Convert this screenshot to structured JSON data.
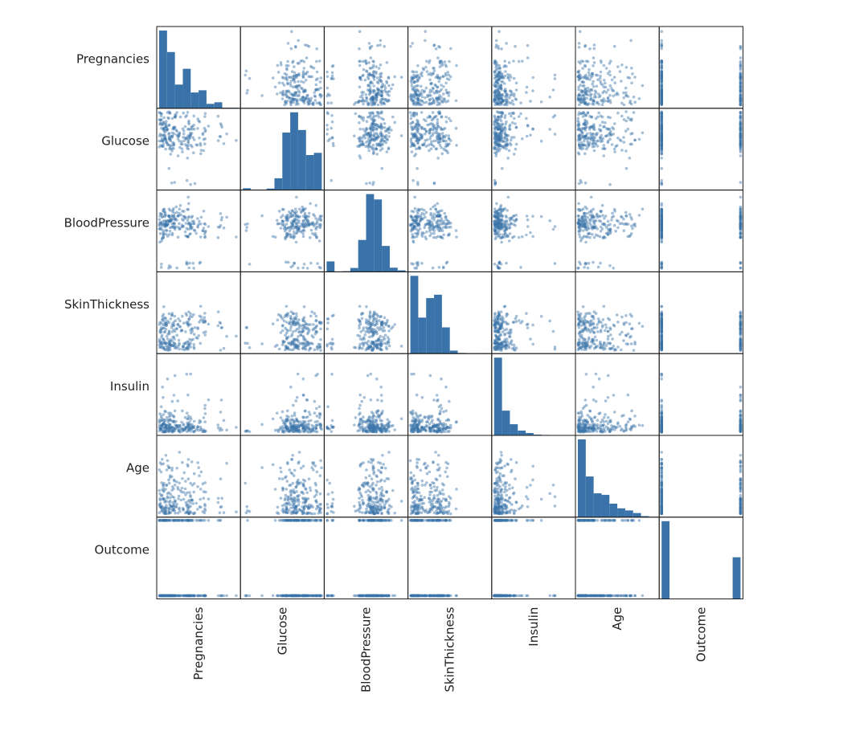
{
  "chart_data": {
    "type": "scatter_matrix",
    "variables": [
      "Pregnancies",
      "Glucose",
      "BloodPressure",
      "SkinThickness",
      "Insulin",
      "Age",
      "Outcome"
    ],
    "ranges": {
      "Pregnancies": [
        0,
        17
      ],
      "Glucose": [
        0,
        199
      ],
      "BloodPressure": [
        0,
        122
      ],
      "SkinThickness": [
        0,
        99
      ],
      "Insulin": [
        0,
        846
      ],
      "Age": [
        21,
        81
      ],
      "Outcome": [
        0,
        1
      ]
    },
    "histograms": {
      "Pregnancies": [
        246,
        178,
        75,
        125,
        50,
        57,
        14,
        19,
        2,
        2
      ],
      "Glucose": [
        5,
        0,
        1,
        4,
        32,
        156,
        211,
        163,
        95,
        101
      ],
      "BloodPressure": [
        35,
        1,
        2,
        13,
        107,
        261,
        243,
        87,
        14,
        5
      ],
      "SkinThickness": [
        231,
        107,
        165,
        175,
        78,
        9,
        2,
        0,
        0,
        1
      ],
      "Insulin": [
        487,
        155,
        70,
        30,
        15,
        5,
        3,
        1,
        1,
        1
      ],
      "Age": [
        300,
        157,
        92,
        86,
        52,
        34,
        26,
        16,
        4,
        1
      ],
      "Outcome": [
        500,
        0,
        0,
        0,
        0,
        0,
        0,
        0,
        0,
        268
      ]
    },
    "marker_color": "#3a73a9",
    "marker_alpha": 0.45,
    "sample_points_per_panel": 220,
    "xlabel": "",
    "ylabel": "",
    "title": ""
  }
}
